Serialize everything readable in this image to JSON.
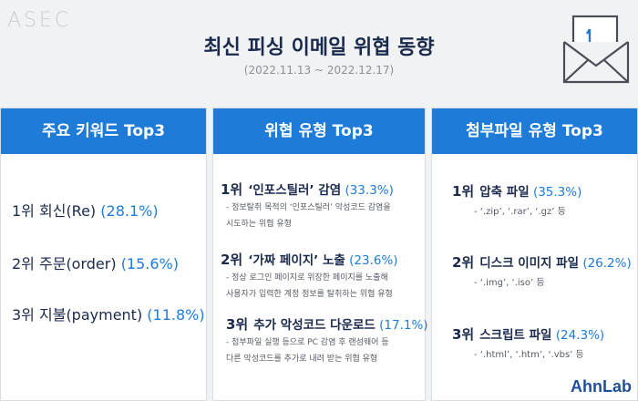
{
  "brand": {
    "asec": "ASEC",
    "ahnlab": "AhnLab"
  },
  "header": {
    "title": "최신 피싱 이메일 위협 동향",
    "period": "(2022.11.13 ~ 2022.12.17)"
  },
  "keywords": {
    "heading": "주요 키워드 Top3",
    "items": [
      {
        "rank": "1위",
        "name": "회신(Re)",
        "pct": "(28.1%)"
      },
      {
        "rank": "2위",
        "name": "주문(order)",
        "pct": "(15.6%)"
      },
      {
        "rank": "3위",
        "name": "지불(payment)",
        "pct": "(11.8%)"
      }
    ]
  },
  "threats": {
    "heading": "위협 유형 Top3",
    "items": [
      {
        "rank": "1위",
        "name": "‘인포스틸러’ 감염",
        "pct": "(33.3%)",
        "desc": [
          "- 정보탈취 목적의 ‘인포스틸러’ 악성코드 감염을",
          "시도하는 위협 유형"
        ]
      },
      {
        "rank": "2위",
        "name": "‘가짜 페이지’ 노출",
        "pct": "(23.6%)",
        "desc": [
          "- 정상 로그인 페이지로 위장한 페이지를 노출해",
          "사용자가 입력한 계정 정보를 탈취하는 위협 유형"
        ]
      },
      {
        "rank": "3위",
        "name": "추가 악성코드 다운로드",
        "pct": "(17.1%)",
        "desc": [
          "- 첨부파일 실행 등으로 PC 감염 후 랜섬웨어 등",
          "다른 악성코드를 추가로 내려 받는 위협 유형"
        ]
      }
    ]
  },
  "attachments": {
    "heading": "첨부파일 유형 Top3",
    "items": [
      {
        "rank": "1위",
        "name": "압축 파일",
        "pct": "(35.3%)",
        "ext": "- ‘.zip’, ‘.rar’, ‘.gz’ 등"
      },
      {
        "rank": "2위",
        "name": "디스크 이미지 파일",
        "pct": "(26.2%)",
        "ext": "- ‘.img’, ‘.iso’ 등"
      },
      {
        "rank": "3위",
        "name": "스크립트 파일",
        "pct": "(24.3%)",
        "ext": "- ‘.html’, ‘.htm’, ‘.vbs’ 등"
      }
    ]
  },
  "icons": [
    "mail-hook-icon"
  ]
}
